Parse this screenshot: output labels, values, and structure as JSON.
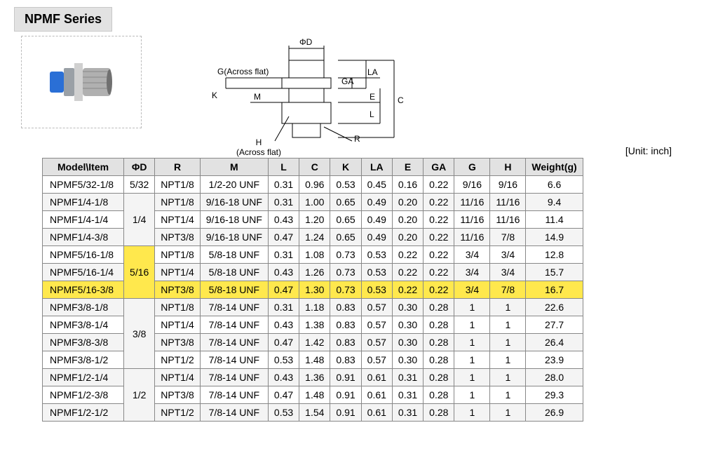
{
  "series_title": "NPMF Series",
  "unit_label": "[Unit: inch]",
  "diagram_labels": {
    "phi_d": "ΦD",
    "g_flat": "G(Across flat)",
    "h_flat": "H\n(Across flat)",
    "K": "K",
    "M": "M",
    "GA": "GA",
    "LA": "LA",
    "E": "E",
    "L": "L",
    "C": "C",
    "R": "R"
  },
  "colors": {
    "header_bg": "#e2e2e2",
    "alt_row_bg": "#f4f4f4",
    "highlight_bg": "#ffe84d",
    "border": "#888888",
    "photo_border": "#bbbbbb",
    "fitting_blue": "#2a6fd6",
    "fitting_metal": "#c0c0c0"
  },
  "table": {
    "columns": [
      "Model\\Item",
      "ΦD",
      "R",
      "M",
      "L",
      "C",
      "K",
      "LA",
      "E",
      "GA",
      "G",
      "H",
      "Weight(g)"
    ],
    "groups": [
      {
        "d": "5/32",
        "rows": [
          {
            "model": "NPMF5/32-1/8",
            "R": "NPT1/8",
            "M": "1/2-20 UNF",
            "L": "0.31",
            "C": "0.96",
            "K": "0.53",
            "LA": "0.45",
            "E": "0.16",
            "GA": "0.22",
            "G": "9/16",
            "H": "9/16",
            "W": "6.6",
            "alt": false,
            "hl": false
          }
        ]
      },
      {
        "d": "1/4",
        "rows": [
          {
            "model": "NPMF1/4-1/8",
            "R": "NPT1/8",
            "M": "9/16-18 UNF",
            "L": "0.31",
            "C": "1.00",
            "K": "0.65",
            "LA": "0.49",
            "E": "0.20",
            "GA": "0.22",
            "G": "11/16",
            "H": "11/16",
            "W": "9.4",
            "alt": true,
            "hl": false
          },
          {
            "model": "NPMF1/4-1/4",
            "R": "NPT1/4",
            "M": "9/16-18 UNF",
            "L": "0.43",
            "C": "1.20",
            "K": "0.65",
            "LA": "0.49",
            "E": "0.20",
            "GA": "0.22",
            "G": "11/16",
            "H": "11/16",
            "W": "11.4",
            "alt": false,
            "hl": false
          },
          {
            "model": "NPMF1/4-3/8",
            "R": "NPT3/8",
            "M": "9/16-18 UNF",
            "L": "0.47",
            "C": "1.24",
            "K": "0.65",
            "LA": "0.49",
            "E": "0.20",
            "GA": "0.22",
            "G": "11/16",
            "H": "7/8",
            "W": "14.9",
            "alt": true,
            "hl": false
          }
        ]
      },
      {
        "d": "5/16",
        "d_hl": true,
        "rows": [
          {
            "model": "NPMF5/16-1/8",
            "R": "NPT1/8",
            "M": "5/8-18 UNF",
            "L": "0.31",
            "C": "1.08",
            "K": "0.73",
            "LA": "0.53",
            "E": "0.22",
            "GA": "0.22",
            "G": "3/4",
            "H": "3/4",
            "W": "12.8",
            "alt": false,
            "hl": false
          },
          {
            "model": "NPMF5/16-1/4",
            "R": "NPT1/4",
            "M": "5/8-18 UNF",
            "L": "0.43",
            "C": "1.26",
            "K": "0.73",
            "LA": "0.53",
            "E": "0.22",
            "GA": "0.22",
            "G": "3/4",
            "H": "3/4",
            "W": "15.7",
            "alt": true,
            "hl": false
          },
          {
            "model": "NPMF5/16-3/8",
            "R": "NPT3/8",
            "M": "5/8-18 UNF",
            "L": "0.47",
            "C": "1.30",
            "K": "0.73",
            "LA": "0.53",
            "E": "0.22",
            "GA": "0.22",
            "G": "3/4",
            "H": "7/8",
            "W": "16.7",
            "alt": false,
            "hl": true
          }
        ]
      },
      {
        "d": "3/8",
        "rows": [
          {
            "model": "NPMF3/8-1/8",
            "R": "NPT1/8",
            "M": "7/8-14 UNF",
            "L": "0.31",
            "C": "1.18",
            "K": "0.83",
            "LA": "0.57",
            "E": "0.30",
            "GA": "0.28",
            "G": "1",
            "H": "1",
            "W": "22.6",
            "alt": true,
            "hl": false
          },
          {
            "model": "NPMF3/8-1/4",
            "R": "NPT1/4",
            "M": "7/8-14 UNF",
            "L": "0.43",
            "C": "1.38",
            "K": "0.83",
            "LA": "0.57",
            "E": "0.30",
            "GA": "0.28",
            "G": "1",
            "H": "1",
            "W": "27.7",
            "alt": false,
            "hl": false
          },
          {
            "model": "NPMF3/8-3/8",
            "R": "NPT3/8",
            "M": "7/8-14 UNF",
            "L": "0.47",
            "C": "1.42",
            "K": "0.83",
            "LA": "0.57",
            "E": "0.30",
            "GA": "0.28",
            "G": "1",
            "H": "1",
            "W": "26.4",
            "alt": true,
            "hl": false
          },
          {
            "model": "NPMF3/8-1/2",
            "R": "NPT1/2",
            "M": "7/8-14 UNF",
            "L": "0.53",
            "C": "1.48",
            "K": "0.83",
            "LA": "0.57",
            "E": "0.30",
            "GA": "0.28",
            "G": "1",
            "H": "1",
            "W": "23.9",
            "alt": false,
            "hl": false
          }
        ]
      },
      {
        "d": "1/2",
        "rows": [
          {
            "model": "NPMF1/2-1/4",
            "R": "NPT1/4",
            "M": "7/8-14 UNF",
            "L": "0.43",
            "C": "1.36",
            "K": "0.91",
            "LA": "0.61",
            "E": "0.31",
            "GA": "0.28",
            "G": "1",
            "H": "1",
            "W": "28.0",
            "alt": true,
            "hl": false
          },
          {
            "model": "NPMF1/2-3/8",
            "R": "NPT3/8",
            "M": "7/8-14 UNF",
            "L": "0.47",
            "C": "1.48",
            "K": "0.91",
            "LA": "0.61",
            "E": "0.31",
            "GA": "0.28",
            "G": "1",
            "H": "1",
            "W": "29.3",
            "alt": false,
            "hl": false
          },
          {
            "model": "NPMF1/2-1/2",
            "R": "NPT1/2",
            "M": "7/8-14 UNF",
            "L": "0.53",
            "C": "1.54",
            "K": "0.91",
            "LA": "0.61",
            "E": "0.31",
            "GA": "0.28",
            "G": "1",
            "H": "1",
            "W": "26.9",
            "alt": true,
            "hl": false
          }
        ]
      }
    ]
  }
}
